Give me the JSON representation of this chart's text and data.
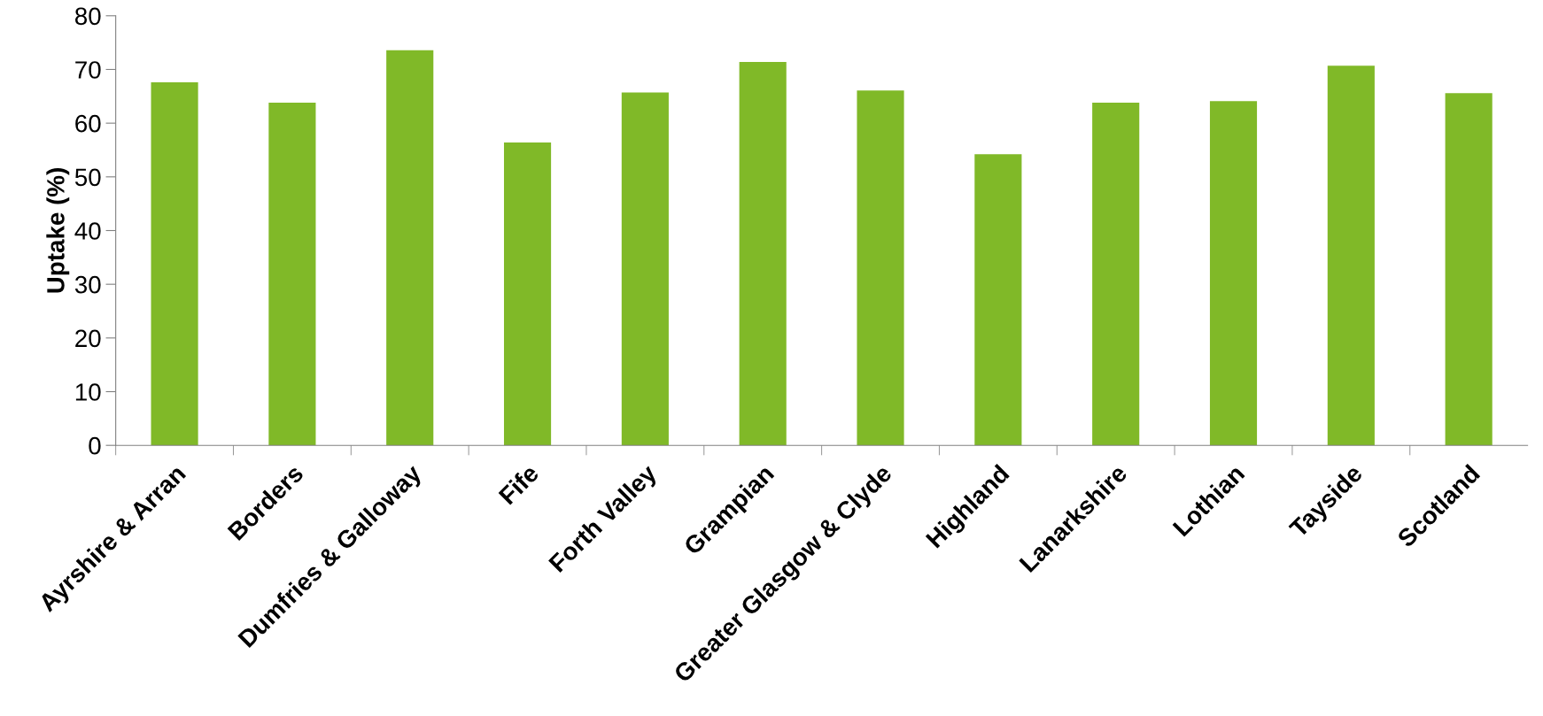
{
  "chart_data": {
    "type": "bar",
    "ylabel": "Uptake (%)",
    "categories": [
      "Ayrshire & Arran",
      "Borders",
      "Dumfries & Galloway",
      "Fife",
      "Forth Valley",
      "Grampian",
      "Greater Glasgow & Clyde",
      "Highland",
      "Lanarkshire",
      "Lothian",
      "Tayside",
      "Scotland"
    ],
    "values": [
      67.6,
      63.8,
      73.6,
      56.4,
      65.7,
      71.4,
      66.1,
      54.2,
      63.8,
      64.1,
      70.7,
      65.6
    ],
    "color": "#80b928",
    "ylim": [
      0,
      80
    ],
    "yticks": [
      0,
      10,
      20,
      30,
      40,
      50,
      60,
      70,
      80
    ],
    "grid": false,
    "legend": false
  }
}
